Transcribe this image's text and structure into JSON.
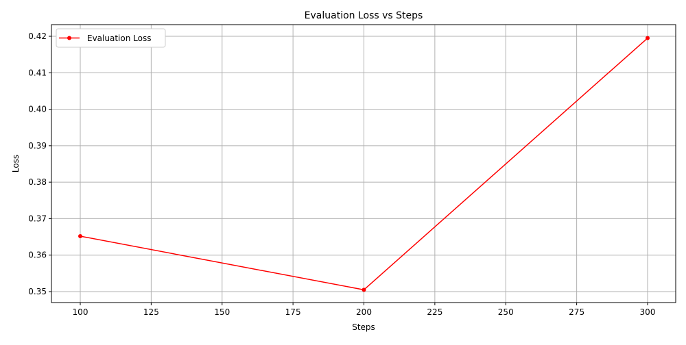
{
  "chart_data": {
    "type": "line",
    "title": "Evaluation Loss vs Steps",
    "xlabel": "Steps",
    "ylabel": "Loss",
    "xlim": [
      90,
      1010
    ],
    "ylim": [
      0.347,
      0.423
    ],
    "x_ticks": [
      100,
      125,
      150,
      175,
      200,
      225,
      250,
      275,
      300
    ],
    "y_ticks": [
      0.35,
      0.36,
      0.37,
      0.38,
      0.39,
      0.4,
      0.41,
      0.42
    ],
    "y_tick_labels": [
      "0.35",
      "0.36",
      "0.37",
      "0.38",
      "0.39",
      "0.40",
      "0.41",
      "0.42"
    ],
    "grid": true,
    "legend_position": "top-left",
    "series": [
      {
        "name": "Evaluation Loss",
        "color": "#ff0000",
        "marker": "circle",
        "x": [
          100,
          200,
          300
        ],
        "y": [
          0.3652,
          0.3505,
          0.4195
        ]
      }
    ]
  }
}
